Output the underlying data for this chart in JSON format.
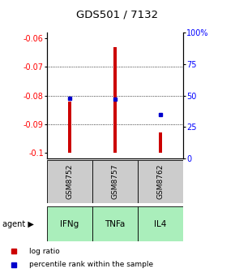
{
  "title": "GDS501 / 7132",
  "samples": [
    "GSM8752",
    "GSM8757",
    "GSM8762"
  ],
  "agents": [
    "IFNg",
    "TNFa",
    "IL4"
  ],
  "log_ratios": [
    -0.082,
    -0.063,
    -0.093
  ],
  "percentile_ranks": [
    48,
    47,
    35
  ],
  "ylim_left": [
    -0.102,
    -0.058
  ],
  "yticks_left": [
    -0.1,
    -0.09,
    -0.08,
    -0.07,
    -0.06
  ],
  "yticks_right": [
    0,
    25,
    50,
    75,
    100
  ],
  "bar_color": "#cc0000",
  "percentile_color": "#0000cc",
  "agent_color": "#aaeebb",
  "sample_bg": "#cccccc",
  "legend_bar_label": "log ratio",
  "legend_pct_label": "percentile rank within the sample",
  "bar_width": 0.08,
  "bar_base": -0.1
}
